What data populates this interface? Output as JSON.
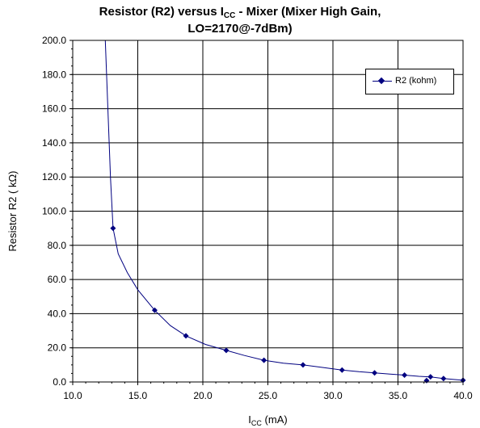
{
  "chart_data": {
    "type": "line",
    "title_line1_main": "Resistor (R2) versus I",
    "title_line1_sub": "CC",
    "title_line1_rest": " - Mixer (Mixer High Gain,",
    "title_line2": "LO=2170@-7dBm)",
    "xlabel_main": "I",
    "xlabel_sub": "CC",
    "xlabel_rest": " (mA)",
    "ylabel": "Resistor R2 ( kΩ)",
    "xlim": [
      10.0,
      40.0
    ],
    "ylim": [
      0.0,
      200.0
    ],
    "x_ticks": [
      "10.0",
      "15.0",
      "20.0",
      "25.0",
      "30.0",
      "35.0",
      "40.0"
    ],
    "y_ticks": [
      "0.0",
      "20.0",
      "40.0",
      "60.0",
      "80.0",
      "100.0",
      "120.0",
      "140.0",
      "160.0",
      "180.0",
      "200.0"
    ],
    "grid": true,
    "legend_position": "top-right",
    "series": [
      {
        "name": "R2 (kohm)",
        "color": "#000080",
        "markers": [
          {
            "x": 13.1,
            "y": 90.0
          },
          {
            "x": 16.3,
            "y": 42.0
          },
          {
            "x": 18.7,
            "y": 27.0
          },
          {
            "x": 21.8,
            "y": 18.5
          },
          {
            "x": 24.7,
            "y": 12.7
          },
          {
            "x": 27.7,
            "y": 10.0
          },
          {
            "x": 30.7,
            "y": 7.0
          },
          {
            "x": 33.2,
            "y": 5.3
          },
          {
            "x": 35.5,
            "y": 4.0
          },
          {
            "x": 37.2,
            "y": 0.8
          },
          {
            "x": 37.5,
            "y": 3.0
          },
          {
            "x": 38.5,
            "y": 2.0
          },
          {
            "x": 40.0,
            "y": 1.0
          }
        ],
        "curve": [
          {
            "x": 12.5,
            "y": 200.0
          },
          {
            "x": 12.7,
            "y": 160.0
          },
          {
            "x": 12.9,
            "y": 120.0
          },
          {
            "x": 13.1,
            "y": 90.0
          },
          {
            "x": 13.5,
            "y": 75.0
          },
          {
            "x": 14.2,
            "y": 64.0
          },
          {
            "x": 15.0,
            "y": 54.0
          },
          {
            "x": 16.3,
            "y": 42.0
          },
          {
            "x": 17.5,
            "y": 33.0
          },
          {
            "x": 18.7,
            "y": 27.0
          },
          {
            "x": 20.2,
            "y": 22.0
          },
          {
            "x": 21.8,
            "y": 18.5
          },
          {
            "x": 23.2,
            "y": 15.5
          },
          {
            "x": 24.7,
            "y": 12.7
          },
          {
            "x": 26.2,
            "y": 11.0
          },
          {
            "x": 27.7,
            "y": 10.0
          },
          {
            "x": 29.2,
            "y": 8.5
          },
          {
            "x": 30.7,
            "y": 7.0
          },
          {
            "x": 32.0,
            "y": 6.0
          },
          {
            "x": 33.2,
            "y": 5.3
          },
          {
            "x": 34.4,
            "y": 4.6
          },
          {
            "x": 35.5,
            "y": 4.0
          },
          {
            "x": 36.6,
            "y": 3.3
          },
          {
            "x": 37.5,
            "y": 3.0
          },
          {
            "x": 38.5,
            "y": 2.0
          },
          {
            "x": 40.0,
            "y": 1.0
          }
        ]
      }
    ]
  }
}
